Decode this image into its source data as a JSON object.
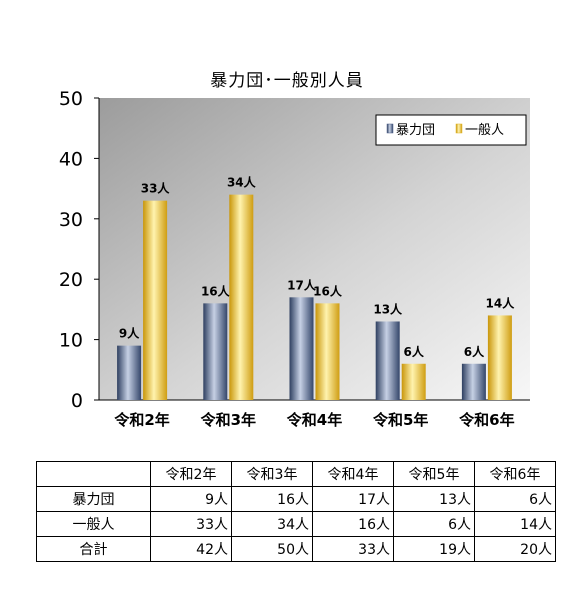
{
  "chart_data": {
    "type": "bar",
    "title": "暴力団･一般別人員",
    "categories": [
      "令和2年",
      "令和3年",
      "令和4年",
      "令和5年",
      "令和6年"
    ],
    "series": [
      {
        "name": "暴力団",
        "values": [
          9,
          16,
          17,
          13,
          6
        ],
        "labels": [
          "9人",
          "16人",
          "17人",
          "13人",
          "6人"
        ],
        "color": "#4a5f88"
      },
      {
        "name": "一般人",
        "values": [
          33,
          34,
          16,
          6,
          14
        ],
        "labels": [
          "33人",
          "34人",
          "16人",
          "6人",
          "14人"
        ],
        "color": "#e0b521"
      }
    ],
    "ylim": [
      0,
      50
    ],
    "yticks": [
      "0",
      "10",
      "20",
      "30",
      "40",
      "50"
    ],
    "grid": false,
    "legend": "top-right"
  },
  "table": {
    "headers": [
      "令和2年",
      "令和3年",
      "令和4年",
      "令和5年",
      "令和6年"
    ],
    "rows": [
      {
        "label": "暴力団",
        "cells": [
          "9人",
          "16人",
          "17人",
          "13人",
          "6人"
        ]
      },
      {
        "label": "一般人",
        "cells": [
          "33人",
          "34人",
          "16人",
          "6人",
          "14人"
        ]
      },
      {
        "label": "合計",
        "cells": [
          "42人",
          "50人",
          "33人",
          "19人",
          "20人"
        ]
      }
    ]
  }
}
